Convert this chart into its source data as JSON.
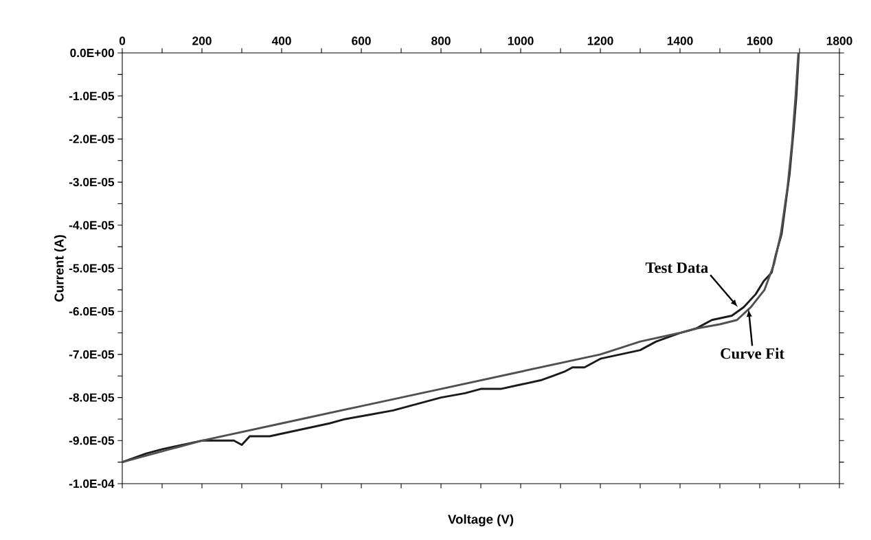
{
  "chart_data": {
    "type": "line",
    "xlabel": "Voltage (V)",
    "ylabel": "Current (A)",
    "xlim": [
      0,
      1800
    ],
    "ylim": [
      -0.0001,
      0
    ],
    "xticks": [
      0,
      {
        "value": 100,
        "label": null
      },
      200,
      {
        "value": 300,
        "label": null
      },
      400,
      {
        "value": 500,
        "label": null
      },
      600,
      {
        "value": 700,
        "label": null
      },
      800,
      {
        "value": 900,
        "label": null
      },
      1000,
      {
        "value": 1100,
        "label": null
      },
      1200,
      {
        "value": 1300,
        "label": null
      },
      1400,
      {
        "value": 1500,
        "label": null
      },
      1600,
      {
        "value": 1700,
        "label": null
      },
      1800
    ],
    "yticks": [
      {
        "value": -0.0001,
        "label": "-1.0E-04"
      },
      {
        "value": -9.5e-05,
        "label": null
      },
      {
        "value": -9e-05,
        "label": "-9.0E-05"
      },
      {
        "value": -8.5e-05,
        "label": null
      },
      {
        "value": -8e-05,
        "label": "-8.0E-05"
      },
      {
        "value": -7.5e-05,
        "label": null
      },
      {
        "value": -7e-05,
        "label": "-7.0E-05"
      },
      {
        "value": -6.5e-05,
        "label": null
      },
      {
        "value": -6e-05,
        "label": "-6.0E-05"
      },
      {
        "value": -5.5e-05,
        "label": null
      },
      {
        "value": -5e-05,
        "label": "-5.0E-05"
      },
      {
        "value": -4.5e-05,
        "label": null
      },
      {
        "value": -4e-05,
        "label": "-4.0E-05"
      },
      {
        "value": -3.5e-05,
        "label": null
      },
      {
        "value": -3e-05,
        "label": "-3.0E-05"
      },
      {
        "value": -2.5e-05,
        "label": null
      },
      {
        "value": -2e-05,
        "label": "-2.0E-05"
      },
      {
        "value": -1.5e-05,
        "label": null
      },
      {
        "value": -1e-05,
        "label": "-1.0E-05"
      },
      {
        "value": -5e-06,
        "label": null
      },
      {
        "value": 0,
        "label": "0.0E+00"
      }
    ],
    "series": [
      {
        "color": "#1a1a1a",
        "x": [
          0,
          30,
          60,
          100,
          150,
          200,
          250,
          280,
          300,
          320,
          370,
          420,
          470,
          520,
          560,
          620,
          680,
          720,
          760,
          800,
          860,
          900,
          950,
          1000,
          1050,
          1080,
          1110,
          1130,
          1160,
          1200,
          1250,
          1300,
          1340,
          1400,
          1440,
          1480,
          1530,
          1560,
          1590,
          1610,
          1630,
          1640,
          1655,
          1665,
          1675,
          1685,
          1692,
          1698
        ],
        "values": [
          -9.5e-05,
          -9.4e-05,
          -9.3e-05,
          -9.2e-05,
          -9.1e-05,
          -9e-05,
          -9e-05,
          -9e-05,
          -9.1e-05,
          -8.9e-05,
          -8.9e-05,
          -8.8e-05,
          -8.7e-05,
          -8.6e-05,
          -8.5e-05,
          -8.4e-05,
          -8.3e-05,
          -8.2e-05,
          -8.1e-05,
          -8e-05,
          -7.9e-05,
          -7.8e-05,
          -7.8e-05,
          -7.7e-05,
          -7.6e-05,
          -7.5e-05,
          -7.4e-05,
          -7.3e-05,
          -7.3e-05,
          -7.1e-05,
          -7e-05,
          -6.9e-05,
          -6.7e-05,
          -6.5e-05,
          -6.4e-05,
          -6.2e-05,
          -6.1e-05,
          -5.9e-05,
          -5.6e-05,
          -5.3e-05,
          -5.1e-05,
          -4.7e-05,
          -4.2e-05,
          -3.5e-05,
          -2.8e-05,
          -1.8e-05,
          -1e-05,
          0
        ]
      },
      {
        "color": "#505050",
        "x": [
          0,
          200,
          400,
          600,
          800,
          1000,
          1200,
          1300,
          1400,
          1440,
          1500,
          1543,
          1578,
          1612,
          1636,
          1653,
          1670,
          1681,
          1690,
          1697
        ],
        "values": [
          -9.5e-05,
          -9e-05,
          -8.6e-05,
          -8.2e-05,
          -7.8e-05,
          -7.4e-05,
          -7e-05,
          -6.7e-05,
          -6.5e-05,
          -6.4e-05,
          -6.3e-05,
          -6.2e-05,
          -5.9e-05,
          -5.5e-05,
          -4.9e-05,
          -4.2e-05,
          -3.1e-05,
          -2.1e-05,
          -1e-05,
          0
        ]
      }
    ],
    "annotations": [
      {
        "text": "Test Data",
        "x": 1545,
        "y": -5.9e-05
      },
      {
        "text": "Curve Fit",
        "x": 1572,
        "y": -5.95e-05
      }
    ]
  }
}
